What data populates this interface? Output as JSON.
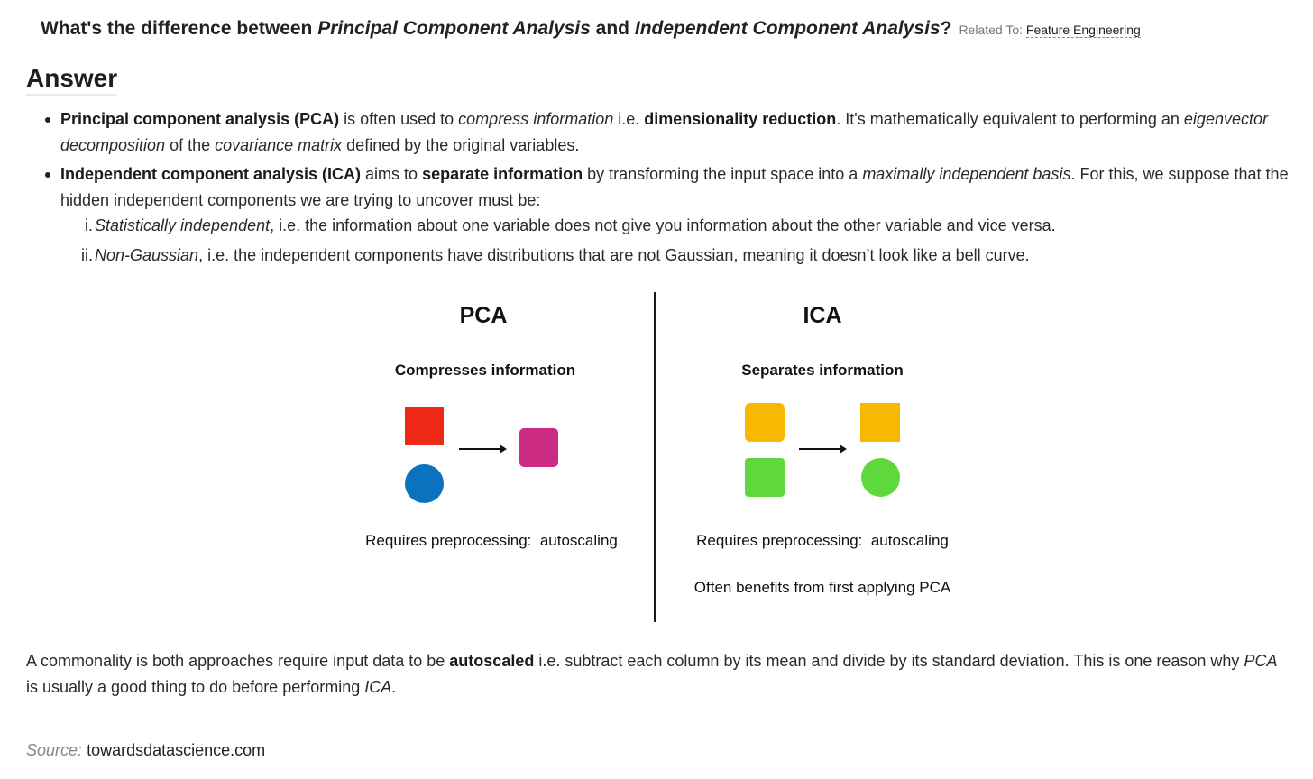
{
  "question": {
    "p1": "What's the difference between ",
    "p2": "Principal Component Analysis",
    "p3": " and ",
    "p4": "Independent Component Analysis",
    "p5": "?",
    "related_label": "Related To:",
    "related_link": "Feature Engineering"
  },
  "answer_heading": "Answer",
  "bullets": {
    "pca": {
      "t1": "Principal component analysis (PCA)",
      "t2": " is often used to ",
      "t3": "compress information",
      "t4": " i.e. ",
      "t5": "dimensionality reduction",
      "t6": ". It's mathematically equivalent to performing an ",
      "t7": "eigenvector decomposition",
      "t8": " of the ",
      "t9": "covariance matrix",
      "t10": " defined by the original variables."
    },
    "ica": {
      "t1": "Independent component analysis (ICA)",
      "t2": " aims to ",
      "t3": "separate information",
      "t4": " by transforming the input space into a ",
      "t5": "maximally independent basis",
      "t6": ". For this, we suppose that the hidden independent components we are trying to uncover must be:",
      "items": [
        {
          "num": "i.",
          "term": "Statistically independent",
          "rest": ", i.e. the information about one variable does not give you information about the other variable and vice versa."
        },
        {
          "num": "ii.",
          "term": "Non-Gaussian",
          "rest": ", i.e. the independent components have distributions that are not Gaussian, meaning it doesn’t look like a bell curve."
        }
      ]
    }
  },
  "figure": {
    "pca": {
      "title": "PCA",
      "subtitle": "Compresses information",
      "note": "Requires preprocessing:  autoscaling"
    },
    "ica": {
      "title": "ICA",
      "subtitle": "Separates information",
      "note": "Requires preprocessing:  autoscaling",
      "note2": "Often benefits from first applying PCA"
    },
    "colors": {
      "red": "#ee2a17",
      "blue": "#0b72be",
      "magenta": "#cc2b84",
      "orange": "#f7b800",
      "green": "#5ed83b"
    }
  },
  "commonality": {
    "t1": "A commonality is both approaches require input data to be ",
    "t2": "autoscaled",
    "t3": " i.e. subtract each column by its mean and divide by its standard deviation. This is one reason why ",
    "t4": "PCA",
    "t5": " is usually a good thing to do before performing ",
    "t6": "ICA",
    "t7": "."
  },
  "source": {
    "label": "Source:",
    "value": "towardsdatascience.com"
  }
}
